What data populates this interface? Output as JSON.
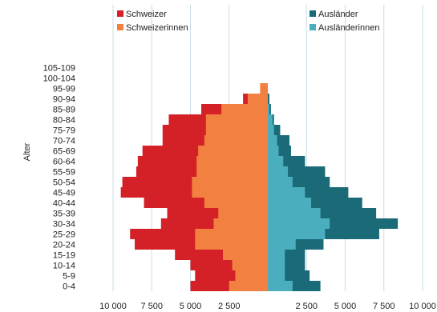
{
  "chart_data": {
    "type": "bar",
    "orientation": "horizontal",
    "layout": "population-pyramid",
    "ylabel": "Alter",
    "age_groups": [
      "0-4",
      "5-9",
      "10-14",
      "15-19",
      "20-24",
      "25-29",
      "30-34",
      "35-39",
      "40-44",
      "45-49",
      "50-54",
      "55-59",
      "60-64",
      "65-69",
      "70-74",
      "75-79",
      "80-84",
      "85-89",
      "90-94",
      "95-99",
      "100-104",
      "105-109"
    ],
    "left_xlim": [
      10000,
      0
    ],
    "right_xlim": [
      0,
      10000
    ],
    "left_tick_labels": [
      "10 000",
      "7 500",
      "5 000",
      "2 500"
    ],
    "right_tick_labels": [
      "2 500",
      "5 000",
      "7 500",
      "10 000"
    ],
    "grid": "vertical",
    "legend_position": "top",
    "series": [
      {
        "name": "Schweizer",
        "side": "left",
        "layer": "outer",
        "color": "#d42027",
        "values": [
          5000,
          4700,
          5000,
          6000,
          8600,
          8900,
          6900,
          6500,
          8000,
          9500,
          9400,
          8500,
          8400,
          8100,
          6800,
          6800,
          6400,
          4300,
          1600,
          0,
          0,
          0
        ]
      },
      {
        "name": "Schweizerinnen",
        "side": "left",
        "layer": "inner",
        "color": "#f28141",
        "values": [
          2500,
          2100,
          2300,
          2900,
          4700,
          4700,
          3500,
          3200,
          4100,
          4900,
          4900,
          4600,
          4600,
          4500,
          4100,
          4000,
          4000,
          3000,
          1300,
          500,
          0,
          0
        ]
      },
      {
        "name": "Ausländer",
        "side": "right",
        "layer": "outer",
        "color": "#1a6a78",
        "values": [
          3400,
          2700,
          2400,
          2400,
          3600,
          7200,
          8400,
          7000,
          6100,
          5200,
          4000,
          3700,
          2400,
          1500,
          1400,
          800,
          400,
          200,
          100,
          0,
          0,
          0
        ]
      },
      {
        "name": "Ausländerinnen",
        "side": "right",
        "layer": "inner",
        "color": "#4aaebe",
        "values": [
          1600,
          1100,
          1100,
          1100,
          1800,
          3700,
          4000,
          3400,
          2800,
          2400,
          1600,
          1300,
          1000,
          700,
          600,
          400,
          300,
          100,
          0,
          0,
          0,
          0
        ]
      }
    ]
  }
}
